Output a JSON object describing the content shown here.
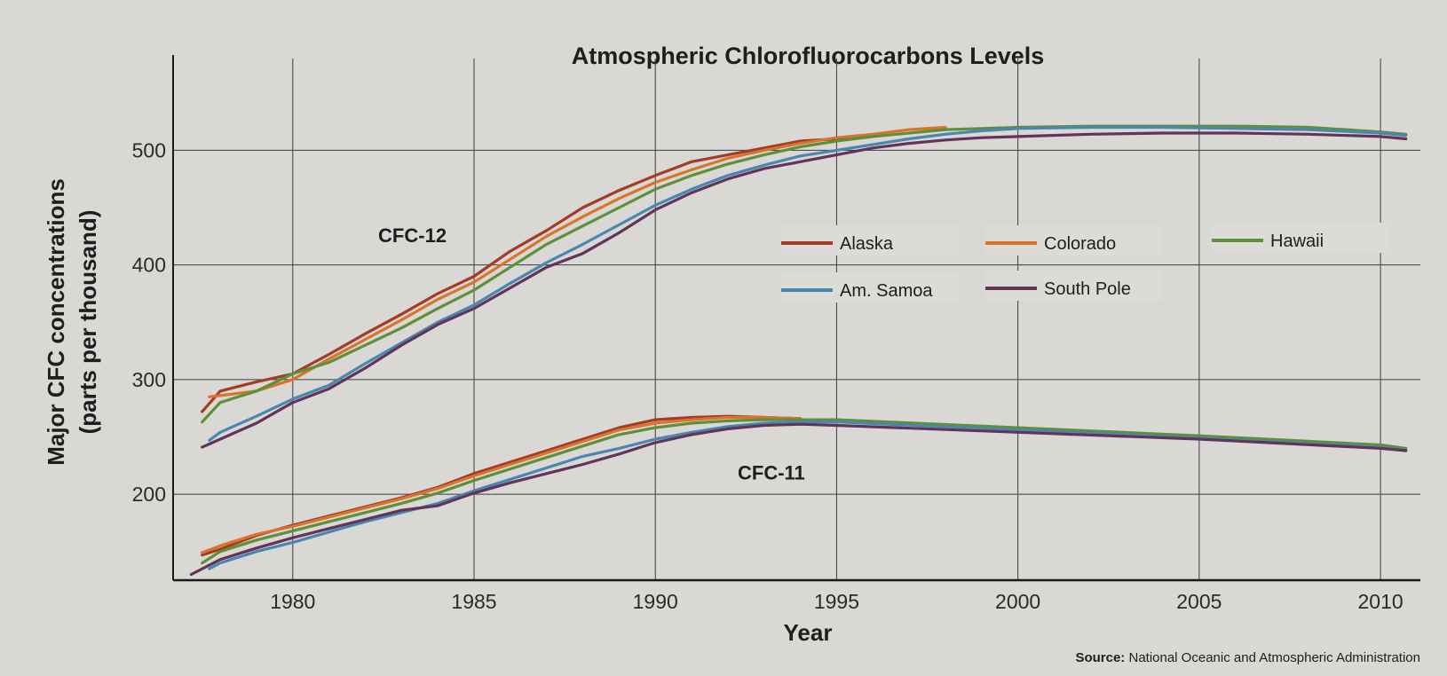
{
  "chart_data": {
    "type": "line",
    "title": "Atmospheric Chlorofluorocarbons Levels",
    "xlabel": "Year",
    "ylabel_line1": "Major CFC concentrations",
    "ylabel_line2": "(parts per thousand)",
    "xlim": [
      1976.7,
      2011.1
    ],
    "ylim": [
      125,
      580
    ],
    "x_ticks": [
      1980,
      1985,
      1990,
      1995,
      2000,
      2005,
      2010
    ],
    "y_ticks": [
      200,
      300,
      400,
      500
    ],
    "grid": true,
    "annotations": [
      {
        "text": "CFC-12",
        "x": 1983.3,
        "y": 420
      },
      {
        "text": "CFC-11",
        "x": 1993.2,
        "y": 213
      }
    ],
    "legend": {
      "placement": "upper right, inside plot",
      "entries": [
        "Alaska",
        "Colorado",
        "Hawaii",
        "Am. Samoa",
        "South Pole"
      ]
    },
    "source": {
      "label": "Source:",
      "text": "National Oceanic and Atmospheric Administration"
    },
    "groups": [
      {
        "name": "CFC-12",
        "series": [
          {
            "name": "Alaska",
            "color": "#a43b26",
            "x": [
              1977.5,
              1978,
              1979,
              1980,
              1981,
              1982,
              1983,
              1984,
              1985,
              1986,
              1987,
              1988,
              1989,
              1990,
              1991,
              1992,
              1993,
              1994,
              1995,
              1996
            ],
            "y": [
              272,
              290,
              298,
              305,
              322,
              340,
              357,
              375,
              390,
              412,
              430,
              450,
              465,
              478,
              490,
              496,
              502,
              508,
              510,
              512
            ]
          },
          {
            "name": "Colorado",
            "color": "#d9742c",
            "x": [
              1977.7,
              1978,
              1979,
              1980,
              1981,
              1982,
              1983,
              1984,
              1985,
              1986,
              1987,
              1988,
              1989,
              1990,
              1991,
              1992,
              1993,
              1994,
              1995,
              1996,
              1997,
              1998
            ],
            "y": [
              285,
              286,
              290,
              300,
              318,
              335,
              352,
              370,
              385,
              405,
              425,
              442,
              458,
              472,
              483,
              493,
              500,
              506,
              511,
              514,
              518,
              520
            ]
          },
          {
            "name": "Hawaii",
            "color": "#5e8f3a",
            "x": [
              1977.5,
              1978,
              1979,
              1980,
              1981,
              1982,
              1983,
              1984,
              1985,
              1986,
              1987,
              1988,
              1989,
              1990,
              1991,
              1992,
              1993,
              1994,
              1995,
              1996,
              1997,
              1998,
              1999,
              2000,
              2002,
              2004,
              2006,
              2008,
              2010,
              2010.7
            ],
            "y": [
              263,
              280,
              290,
              305,
              315,
              330,
              345,
              362,
              378,
              398,
              418,
              434,
              450,
              466,
              478,
              488,
              496,
              503,
              508,
              512,
              515,
              518,
              519,
              520,
              521,
              521,
              521,
              520,
              516,
              514
            ]
          },
          {
            "name": "Am. Samoa",
            "color": "#4a87b0",
            "x": [
              1977.7,
              1978,
              1979,
              1980,
              1981,
              1982,
              1983,
              1984,
              1985,
              1986,
              1987,
              1988,
              1989,
              1990,
              1991,
              1992,
              1993,
              1994,
              1995,
              1996,
              1997,
              1998,
              1999,
              2000,
              2002,
              2004,
              2006,
              2008,
              2010,
              2010.7
            ],
            "y": [
              247,
              254,
              268,
              283,
              295,
              314,
              332,
              350,
              365,
              384,
              402,
              418,
              435,
              452,
              466,
              478,
              487,
              495,
              500,
              505,
              510,
              514,
              517,
              519,
              520,
              520,
              519,
              518,
              515,
              513
            ]
          },
          {
            "name": "South Pole",
            "color": "#63335a",
            "x": [
              1977.5,
              1978,
              1979,
              1980,
              1981,
              1982,
              1983,
              1984,
              1985,
              1986,
              1987,
              1988,
              1989,
              1990,
              1991,
              1992,
              1993,
              1994,
              1995,
              1996,
              1997,
              1998,
              1999,
              2000,
              2002,
              2004,
              2006,
              2008,
              2010,
              2010.7
            ],
            "y": [
              241,
              248,
              262,
              280,
              292,
              310,
              330,
              348,
              362,
              380,
              398,
              410,
              428,
              448,
              463,
              475,
              484,
              490,
              496,
              502,
              506,
              509,
              511,
              512,
              514,
              515,
              515,
              514,
              512,
              510
            ]
          }
        ]
      },
      {
        "name": "CFC-11",
        "series": [
          {
            "name": "Alaska",
            "color": "#a43b26",
            "x": [
              1977.5,
              1978,
              1979,
              1980,
              1981,
              1982,
              1983,
              1984,
              1985,
              1986,
              1987,
              1988,
              1989,
              1990,
              1991,
              1992,
              1993,
              1994
            ],
            "y": [
              147,
              152,
              164,
              173,
              181,
              189,
              197,
              206,
              218,
              228,
              238,
              248,
              258,
              265,
              267,
              268,
              267,
              266
            ]
          },
          {
            "name": "Colorado",
            "color": "#d9742c",
            "x": [
              1977.5,
              1978,
              1979,
              1980,
              1981,
              1982,
              1983,
              1984,
              1985,
              1986,
              1987,
              1988,
              1989,
              1990,
              1991,
              1992,
              1993,
              1994
            ],
            "y": [
              149,
              155,
              165,
              172,
              180,
              188,
              196,
              205,
              216,
              226,
              236,
              246,
              256,
              262,
              265,
              267,
              267,
              266
            ]
          },
          {
            "name": "Hawaii",
            "color": "#5e8f3a",
            "x": [
              1977.5,
              1978,
              1979,
              1980,
              1981,
              1982,
              1983,
              1984,
              1985,
              1986,
              1987,
              1988,
              1989,
              1990,
              1991,
              1992,
              1993,
              1994,
              1995,
              2000,
              2005,
              2010,
              2010.7
            ],
            "y": [
              140,
              150,
              160,
              168,
              176,
              184,
              192,
              201,
              212,
              222,
              232,
              242,
              252,
              258,
              262,
              264,
              265,
              265,
              265,
              258,
              251,
              243,
              240
            ]
          },
          {
            "name": "Am. Samoa",
            "color": "#4a87b0",
            "x": [
              1977.7,
              1978,
              1979,
              1980,
              1981,
              1982,
              1983,
              1984,
              1985,
              1986,
              1987,
              1988,
              1989,
              1990,
              1991,
              1992,
              1993,
              1994,
              1995,
              2000,
              2005,
              2010,
              2010.7
            ],
            "y": [
              135,
              140,
              150,
              158,
              167,
              176,
              184,
              192,
              203,
              213,
              223,
              233,
              240,
              248,
              254,
              259,
              262,
              263,
              263,
              256,
              249,
              241,
              238
            ]
          },
          {
            "name": "South Pole",
            "color": "#63335a",
            "x": [
              1977.2,
              1978,
              1979,
              1980,
              1981,
              1982,
              1983,
              1984,
              1985,
              1986,
              1987,
              1988,
              1989,
              1990,
              1991,
              1992,
              1993,
              1994,
              1995,
              2000,
              2005,
              2010,
              2010.7
            ],
            "y": [
              130,
              143,
              153,
              162,
              170,
              178,
              186,
              190,
              201,
              210,
              218,
              226,
              235,
              245,
              252,
              257,
              260,
              261,
              260,
              254,
              248,
              240,
              238
            ]
          }
        ]
      }
    ]
  }
}
